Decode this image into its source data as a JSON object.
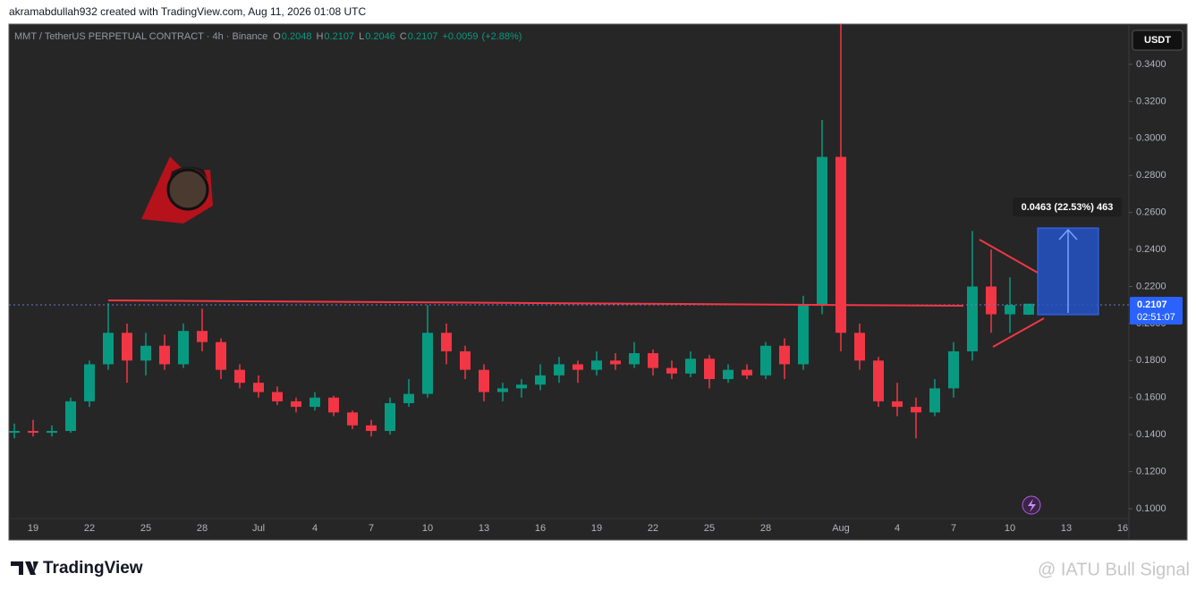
{
  "header": {
    "credit": "akramabdullah932 created with TradingView.com, Aug 11, 2026 01:08 UTC"
  },
  "chart_data": {
    "type": "candlestick",
    "symbol": "MMT / TetherUS PERPETUAL CONTRACT · 4h · Binance",
    "ohlc_legend": [
      {
        "label": "O",
        "value": 0.2048
      },
      {
        "label": "H",
        "value": 0.2107
      },
      {
        "label": "L",
        "value": 0.2046
      },
      {
        "label": "C",
        "value": 0.2107
      }
    ],
    "change": {
      "value": 0.0059,
      "label": "+0.0059"
    },
    "change_pct": {
      "value": 2.88,
      "label": "(+2.88%)"
    },
    "currency": "USDT",
    "last_price": 0.2107,
    "countdown": "02:51:07",
    "measure_label": "0.0463 (22.53%) 463",
    "up_color": "#089981",
    "down_color": "#f23645",
    "categories": [
      null,
      "19",
      null,
      null,
      "22",
      null,
      null,
      "25",
      null,
      null,
      "28",
      null,
      null,
      "Jul",
      null,
      null,
      "4",
      null,
      null,
      "7",
      null,
      null,
      "10",
      null,
      null,
      "13",
      null,
      null,
      "16",
      null,
      null,
      "19",
      null,
      null,
      "22",
      null,
      null,
      "25",
      null,
      null,
      "28",
      null,
      null,
      null,
      "Aug",
      null,
      null,
      "4",
      null,
      null,
      "7",
      null,
      null,
      "10",
      null,
      null,
      "13",
      null,
      null,
      "16"
    ],
    "open": [
      0.141,
      0.142,
      0.141,
      0.142,
      0.158,
      0.178,
      0.195,
      0.18,
      0.188,
      0.178,
      0.196,
      0.19,
      0.175,
      0.168,
      0.163,
      0.158,
      0.155,
      0.16,
      0.152,
      0.145,
      0.142,
      0.157,
      0.162,
      0.195,
      0.185,
      0.175,
      0.163,
      0.165,
      0.167,
      0.172,
      0.178,
      0.175,
      0.18,
      0.178,
      0.184,
      0.176,
      0.173,
      0.181,
      0.17,
      0.175,
      0.172,
      0.188,
      0.178,
      0.21,
      0.29,
      0.195,
      0.18,
      0.158,
      0.155,
      0.152,
      0.165,
      0.185,
      0.22,
      0.205,
      0.2048,
      null,
      null,
      null,
      null,
      null
    ],
    "high": [
      0.146,
      0.148,
      0.145,
      0.16,
      0.18,
      0.211,
      0.2,
      0.195,
      0.194,
      0.2,
      0.208,
      0.192,
      0.178,
      0.172,
      0.166,
      0.16,
      0.163,
      0.161,
      0.153,
      0.148,
      0.16,
      0.17,
      0.21,
      0.2,
      0.188,
      0.178,
      0.168,
      0.17,
      0.178,
      0.182,
      0.18,
      0.185,
      0.184,
      0.19,
      0.186,
      0.18,
      0.185,
      0.183,
      0.178,
      0.178,
      0.19,
      0.192,
      0.215,
      0.31,
      0.362,
      0.2,
      0.182,
      0.168,
      0.16,
      0.17,
      0.19,
      0.25,
      0.24,
      0.225,
      0.2107,
      null,
      null,
      null,
      null,
      null
    ],
    "low": [
      0.138,
      0.139,
      0.139,
      0.141,
      0.155,
      0.175,
      0.168,
      0.172,
      0.175,
      0.176,
      0.185,
      0.17,
      0.165,
      0.16,
      0.156,
      0.152,
      0.153,
      0.15,
      0.143,
      0.139,
      0.14,
      0.155,
      0.16,
      0.178,
      0.17,
      0.158,
      0.158,
      0.16,
      0.164,
      0.168,
      0.168,
      0.172,
      0.175,
      0.176,
      0.172,
      0.17,
      0.171,
      0.165,
      0.168,
      0.17,
      0.17,
      0.17,
      0.175,
      0.205,
      0.185,
      0.175,
      0.155,
      0.15,
      0.138,
      0.15,
      0.16,
      0.18,
      0.195,
      0.195,
      0.2046,
      null,
      null,
      null,
      null,
      null
    ],
    "close": [
      0.142,
      0.141,
      0.142,
      0.158,
      0.178,
      0.195,
      0.18,
      0.188,
      0.178,
      0.196,
      0.19,
      0.175,
      0.168,
      0.163,
      0.158,
      0.155,
      0.16,
      0.152,
      0.145,
      0.142,
      0.157,
      0.162,
      0.195,
      0.185,
      0.175,
      0.163,
      0.165,
      0.167,
      0.172,
      0.178,
      0.175,
      0.18,
      0.178,
      0.184,
      0.176,
      0.173,
      0.181,
      0.17,
      0.175,
      0.172,
      0.188,
      0.178,
      0.21,
      0.29,
      0.195,
      0.18,
      0.158,
      0.155,
      0.152,
      0.165,
      0.185,
      0.22,
      0.205,
      0.21,
      0.2107,
      null,
      null,
      null,
      null,
      null
    ],
    "ylim": [
      0.0831,
      0.3617
    ],
    "yticks": [
      {
        "value": 0.1,
        "label": "0.1000"
      },
      {
        "value": 0.12,
        "label": "0.1200"
      },
      {
        "value": 0.14,
        "label": "0.1400"
      },
      {
        "value": 0.16,
        "label": "0.1600"
      },
      {
        "value": 0.18,
        "label": "0.1800"
      },
      {
        "value": 0.2,
        "label": "0.2000"
      },
      {
        "value": 0.22,
        "label": "0.2200"
      },
      {
        "value": 0.24,
        "label": "0.2400"
      },
      {
        "value": 0.26,
        "label": "0.2600"
      },
      {
        "value": 0.28,
        "label": "0.2800"
      },
      {
        "value": 0.3,
        "label": "0.3000"
      },
      {
        "value": 0.32,
        "label": "0.3200"
      },
      {
        "value": 0.34,
        "label": "0.3400"
      }
    ],
    "grid": false
  },
  "footer": {
    "brand": "TradingView",
    "watermark": "@ IATU Bull Signal"
  }
}
